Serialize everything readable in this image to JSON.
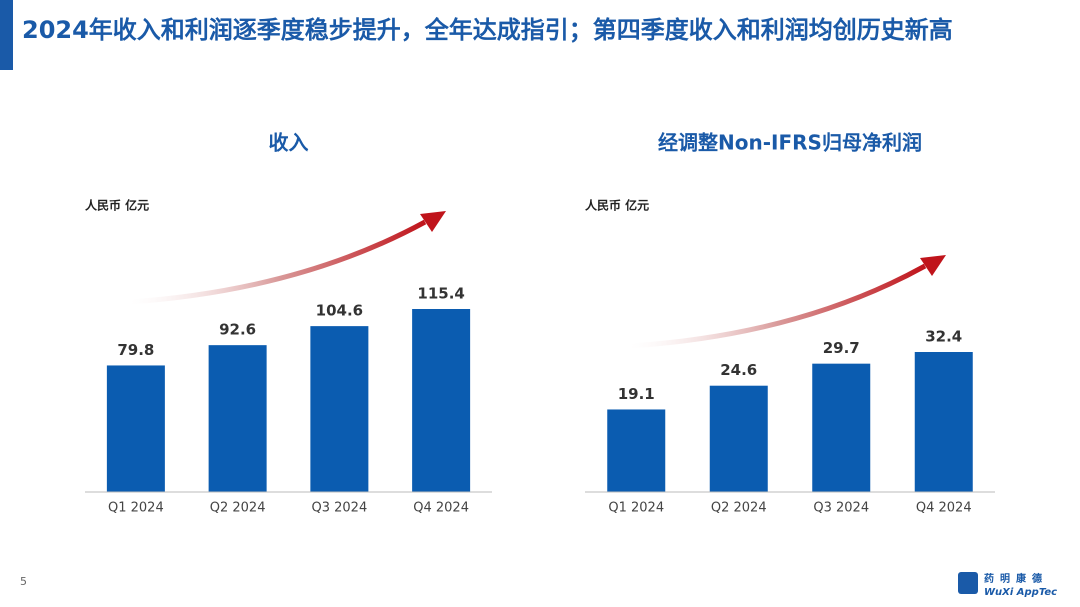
{
  "header": {
    "title": "2024年收入和利润逐季度稳步提升，全年达成指引；第四季度收入和利润均创历史新高"
  },
  "chart_data": [
    {
      "type": "bar",
      "title": "收入",
      "y_label": "人民币 亿元",
      "categories": [
        "Q1 2024",
        "Q2 2024",
        "Q3 2024",
        "Q4 2024"
      ],
      "values": [
        79.8,
        92.6,
        104.6,
        115.4
      ],
      "color": "#0b5cb0"
    },
    {
      "type": "bar",
      "title": "经调整Non-IFRS归母净利润",
      "y_label": "人民币 亿元",
      "categories": [
        "Q1 2024",
        "Q2 2024",
        "Q3 2024",
        "Q4 2024"
      ],
      "values": [
        19.1,
        24.6,
        29.7,
        32.4
      ],
      "color": "#0b5cb0"
    }
  ],
  "footer": {
    "page": "5",
    "logo_cn": "药明康德",
    "logo_en": "WuXi AppTec"
  }
}
